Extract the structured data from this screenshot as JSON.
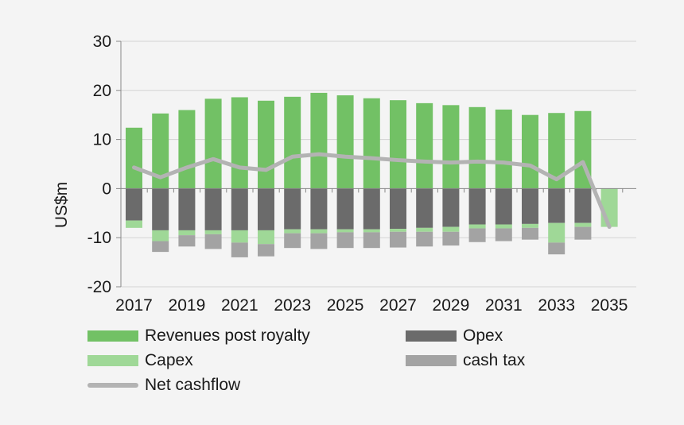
{
  "chart_data": {
    "type": "bar",
    "stacked": true,
    "title": "",
    "xlabel": "",
    "ylabel": "US$m",
    "ylim": [
      -20,
      30
    ],
    "yticks": [
      30,
      20,
      10,
      0,
      -10,
      -20
    ],
    "categories": [
      "2017",
      "2018",
      "2019",
      "2020",
      "2021",
      "2022",
      "2023",
      "2024",
      "2025",
      "2026",
      "2027",
      "2028",
      "2029",
      "2030",
      "2031",
      "2032",
      "2033",
      "2034",
      "2035"
    ],
    "xtick_labels": [
      "2017",
      "2019",
      "2021",
      "2023",
      "2025",
      "2027",
      "2029",
      "2031",
      "2033",
      "2035"
    ],
    "series": [
      {
        "name": "Revenues post royalty",
        "color": "#72c165",
        "values": [
          12.4,
          15.3,
          16.0,
          18.3,
          18.6,
          17.9,
          18.7,
          19.5,
          19.0,
          18.4,
          18.0,
          17.4,
          17.0,
          16.6,
          16.1,
          15.0,
          15.4,
          15.8,
          0
        ]
      },
      {
        "name": "Opex",
        "color": "#6b6b6b",
        "values": [
          -6.5,
          -8.5,
          -8.5,
          -8.5,
          -8.5,
          -8.5,
          -8.3,
          -8.3,
          -8.3,
          -8.3,
          -8.2,
          -8.0,
          -7.8,
          -7.3,
          -7.3,
          -7.2,
          -7.0,
          -7.0,
          0
        ]
      },
      {
        "name": "Capex",
        "color": "#9fd897",
        "values": [
          -1.5,
          -2.2,
          -1.0,
          -0.8,
          -2.5,
          -2.8,
          -0.8,
          -0.8,
          -0.6,
          -0.6,
          -0.6,
          -0.8,
          -1.0,
          -0.8,
          -0.8,
          -0.8,
          -4.0,
          -0.8,
          -7.8
        ]
      },
      {
        "name": "cash tax",
        "color": "#a3a3a3",
        "values": [
          0,
          -2.2,
          -2.3,
          -3.0,
          -3.0,
          -2.5,
          -3.0,
          -3.2,
          -3.2,
          -3.2,
          -3.2,
          -3.0,
          -2.8,
          -2.8,
          -2.6,
          -2.4,
          -2.4,
          -2.6,
          0
        ]
      }
    ],
    "line_series": {
      "name": "Net cashflow",
      "color": "#b3b3b3",
      "values": [
        4.3,
        2.3,
        4.3,
        6.0,
        4.3,
        3.8,
        6.5,
        7.0,
        6.5,
        6.2,
        5.8,
        5.5,
        5.3,
        5.5,
        5.3,
        4.7,
        1.9,
        5.4,
        -7.8
      ]
    },
    "legend_position": "bottom"
  }
}
